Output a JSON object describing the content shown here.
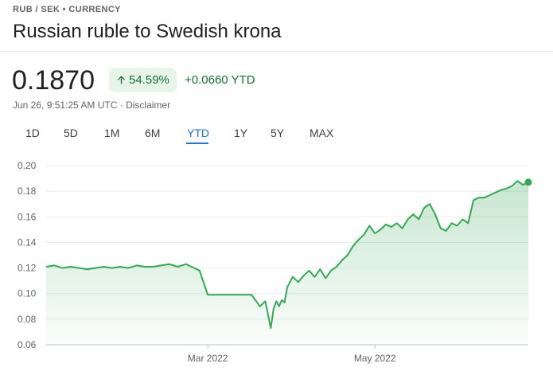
{
  "header": {
    "breadcrumb": "RUB / SEK • CURRENCY",
    "title": "Russian ruble to Swedish krona"
  },
  "quote": {
    "price": "0.1870",
    "change_pct": "54.59%",
    "change_abs": "+0.0660 YTD",
    "timestamp": "Jun 26, 9:51:25 AM UTC",
    "disclaimer": "Disclaimer",
    "separator": " · "
  },
  "tabs": [
    {
      "label": "1D"
    },
    {
      "label": "5D"
    },
    {
      "label": "1M"
    },
    {
      "label": "6M"
    },
    {
      "label": "YTD",
      "active": true
    },
    {
      "label": "1Y"
    },
    {
      "label": "5Y"
    },
    {
      "label": "MAX"
    }
  ],
  "colors": {
    "up": "#137333",
    "line": "#34a853",
    "accent": "#1a73e8"
  },
  "chart_data": {
    "type": "area",
    "ylim": [
      0.06,
      0.2
    ],
    "yticks": [
      "0.20",
      "0.18",
      "0.16",
      "0.14",
      "0.12",
      "0.10",
      "0.08",
      "0.06"
    ],
    "xticks": [
      "Mar 2022",
      "May 2022"
    ],
    "grid": true,
    "x": [
      "2022-01-01",
      "2022-01-04",
      "2022-01-07",
      "2022-01-10",
      "2022-01-13",
      "2022-01-16",
      "2022-01-19",
      "2022-01-22",
      "2022-01-25",
      "2022-01-28",
      "2022-01-31",
      "2022-02-03",
      "2022-02-06",
      "2022-02-09",
      "2022-02-12",
      "2022-02-15",
      "2022-02-18",
      "2022-02-21",
      "2022-02-23",
      "2022-02-26",
      "2022-03-01",
      "2022-03-05",
      "2022-03-09",
      "2022-03-13",
      "2022-03-17",
      "2022-03-20",
      "2022-03-22",
      "2022-03-24",
      "2022-03-25",
      "2022-03-26",
      "2022-03-27",
      "2022-03-28",
      "2022-03-29",
      "2022-03-30",
      "2022-04-01",
      "2022-04-03",
      "2022-04-05",
      "2022-04-07",
      "2022-04-09",
      "2022-04-11",
      "2022-04-13",
      "2022-04-15",
      "2022-04-17",
      "2022-04-19",
      "2022-04-21",
      "2022-04-23",
      "2022-04-25",
      "2022-04-27",
      "2022-04-29",
      "2022-05-01",
      "2022-05-03",
      "2022-05-05",
      "2022-05-07",
      "2022-05-09",
      "2022-05-11",
      "2022-05-13",
      "2022-05-15",
      "2022-05-17",
      "2022-05-19",
      "2022-05-21",
      "2022-05-23",
      "2022-05-25",
      "2022-05-27",
      "2022-05-29",
      "2022-05-31",
      "2022-06-02",
      "2022-06-04",
      "2022-06-06",
      "2022-06-08",
      "2022-06-10",
      "2022-06-12",
      "2022-06-14",
      "2022-06-16",
      "2022-06-18",
      "2022-06-20",
      "2022-06-22",
      "2022-06-24",
      "2022-06-26"
    ],
    "values": [
      0.121,
      0.122,
      0.12,
      0.121,
      0.12,
      0.119,
      0.12,
      0.121,
      0.12,
      0.121,
      0.12,
      0.122,
      0.121,
      0.121,
      0.122,
      0.123,
      0.121,
      0.123,
      0.121,
      0.118,
      0.099,
      0.099,
      0.099,
      0.099,
      0.099,
      0.09,
      0.094,
      0.073,
      0.088,
      0.094,
      0.09,
      0.095,
      0.093,
      0.105,
      0.113,
      0.109,
      0.114,
      0.118,
      0.113,
      0.119,
      0.112,
      0.118,
      0.121,
      0.126,
      0.13,
      0.137,
      0.142,
      0.146,
      0.153,
      0.147,
      0.15,
      0.154,
      0.152,
      0.155,
      0.151,
      0.158,
      0.162,
      0.158,
      0.167,
      0.17,
      0.162,
      0.151,
      0.149,
      0.155,
      0.153,
      0.158,
      0.155,
      0.173,
      0.175,
      0.175,
      0.177,
      0.179,
      0.181,
      0.182,
      0.184,
      0.188,
      0.185,
      0.187
    ]
  }
}
